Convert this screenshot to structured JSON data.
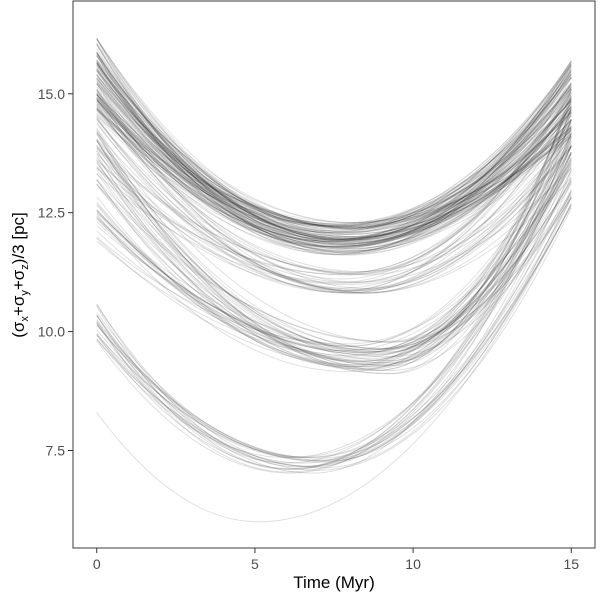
{
  "chart_data": {
    "type": "line",
    "title": "",
    "xlabel": "Time (Myr)",
    "ylabel": {
      "open": "(",
      "sigma": "σ",
      "sub_x": "x",
      "plus": "+",
      "sub_y": "y",
      "sub_z": "z",
      "close": ")/3 [pc]"
    },
    "xlim": [
      -0.75,
      15.75
    ],
    "ylim": [
      5.45,
      16.95
    ],
    "x_ticks": [
      0,
      5,
      10,
      15
    ],
    "x_tick_labels": [
      "0",
      "5",
      "10",
      "15"
    ],
    "y_ticks": [
      7.5,
      10.0,
      12.5,
      15.0
    ],
    "y_tick_labels": [
      "7.5",
      "10.0",
      "12.5",
      "15.0"
    ],
    "grid": false,
    "legend": "none",
    "line_color": "#000000",
    "panel_border_color": "#4d4d4d",
    "note": "Many semi-transparent trajectory curves grouped into families",
    "groups": [
      {
        "name": "group-1",
        "count": 110,
        "y0": [
          14.5,
          16.2
        ],
        "ymin": [
          11.6,
          12.3
        ],
        "tmin": [
          7.3,
          8.3
        ],
        "yend": [
          14.1,
          15.7
        ],
        "opacity": 0.11
      },
      {
        "name": "group-2",
        "count": 28,
        "y0": [
          13.3,
          15.3
        ],
        "ymin": [
          10.8,
          11.3
        ],
        "tmin": [
          7.5,
          8.6
        ],
        "yend": [
          13.2,
          15.4
        ],
        "opacity": 0.12
      },
      {
        "name": "group-3",
        "count": 48,
        "y0": [
          11.9,
          14.3
        ],
        "ymin": [
          9.1,
          9.8
        ],
        "tmin": [
          7.8,
          9.4
        ],
        "yend": [
          12.8,
          15.1
        ],
        "opacity": 0.12
      },
      {
        "name": "group-4",
        "count": 22,
        "y0": [
          9.8,
          10.6
        ],
        "ymin": [
          7.0,
          7.4
        ],
        "tmin": [
          6.0,
          7.4
        ],
        "yend": [
          12.6,
          14.6
        ],
        "opacity": 0.13
      },
      {
        "name": "group-5",
        "count": 1,
        "y0": [
          8.3,
          8.3
        ],
        "ymin": [
          6.0,
          6.0
        ],
        "tmin": [
          5.1,
          5.1
        ],
        "yend": [
          12.7,
          12.7
        ],
        "opacity": 0.12
      }
    ]
  }
}
